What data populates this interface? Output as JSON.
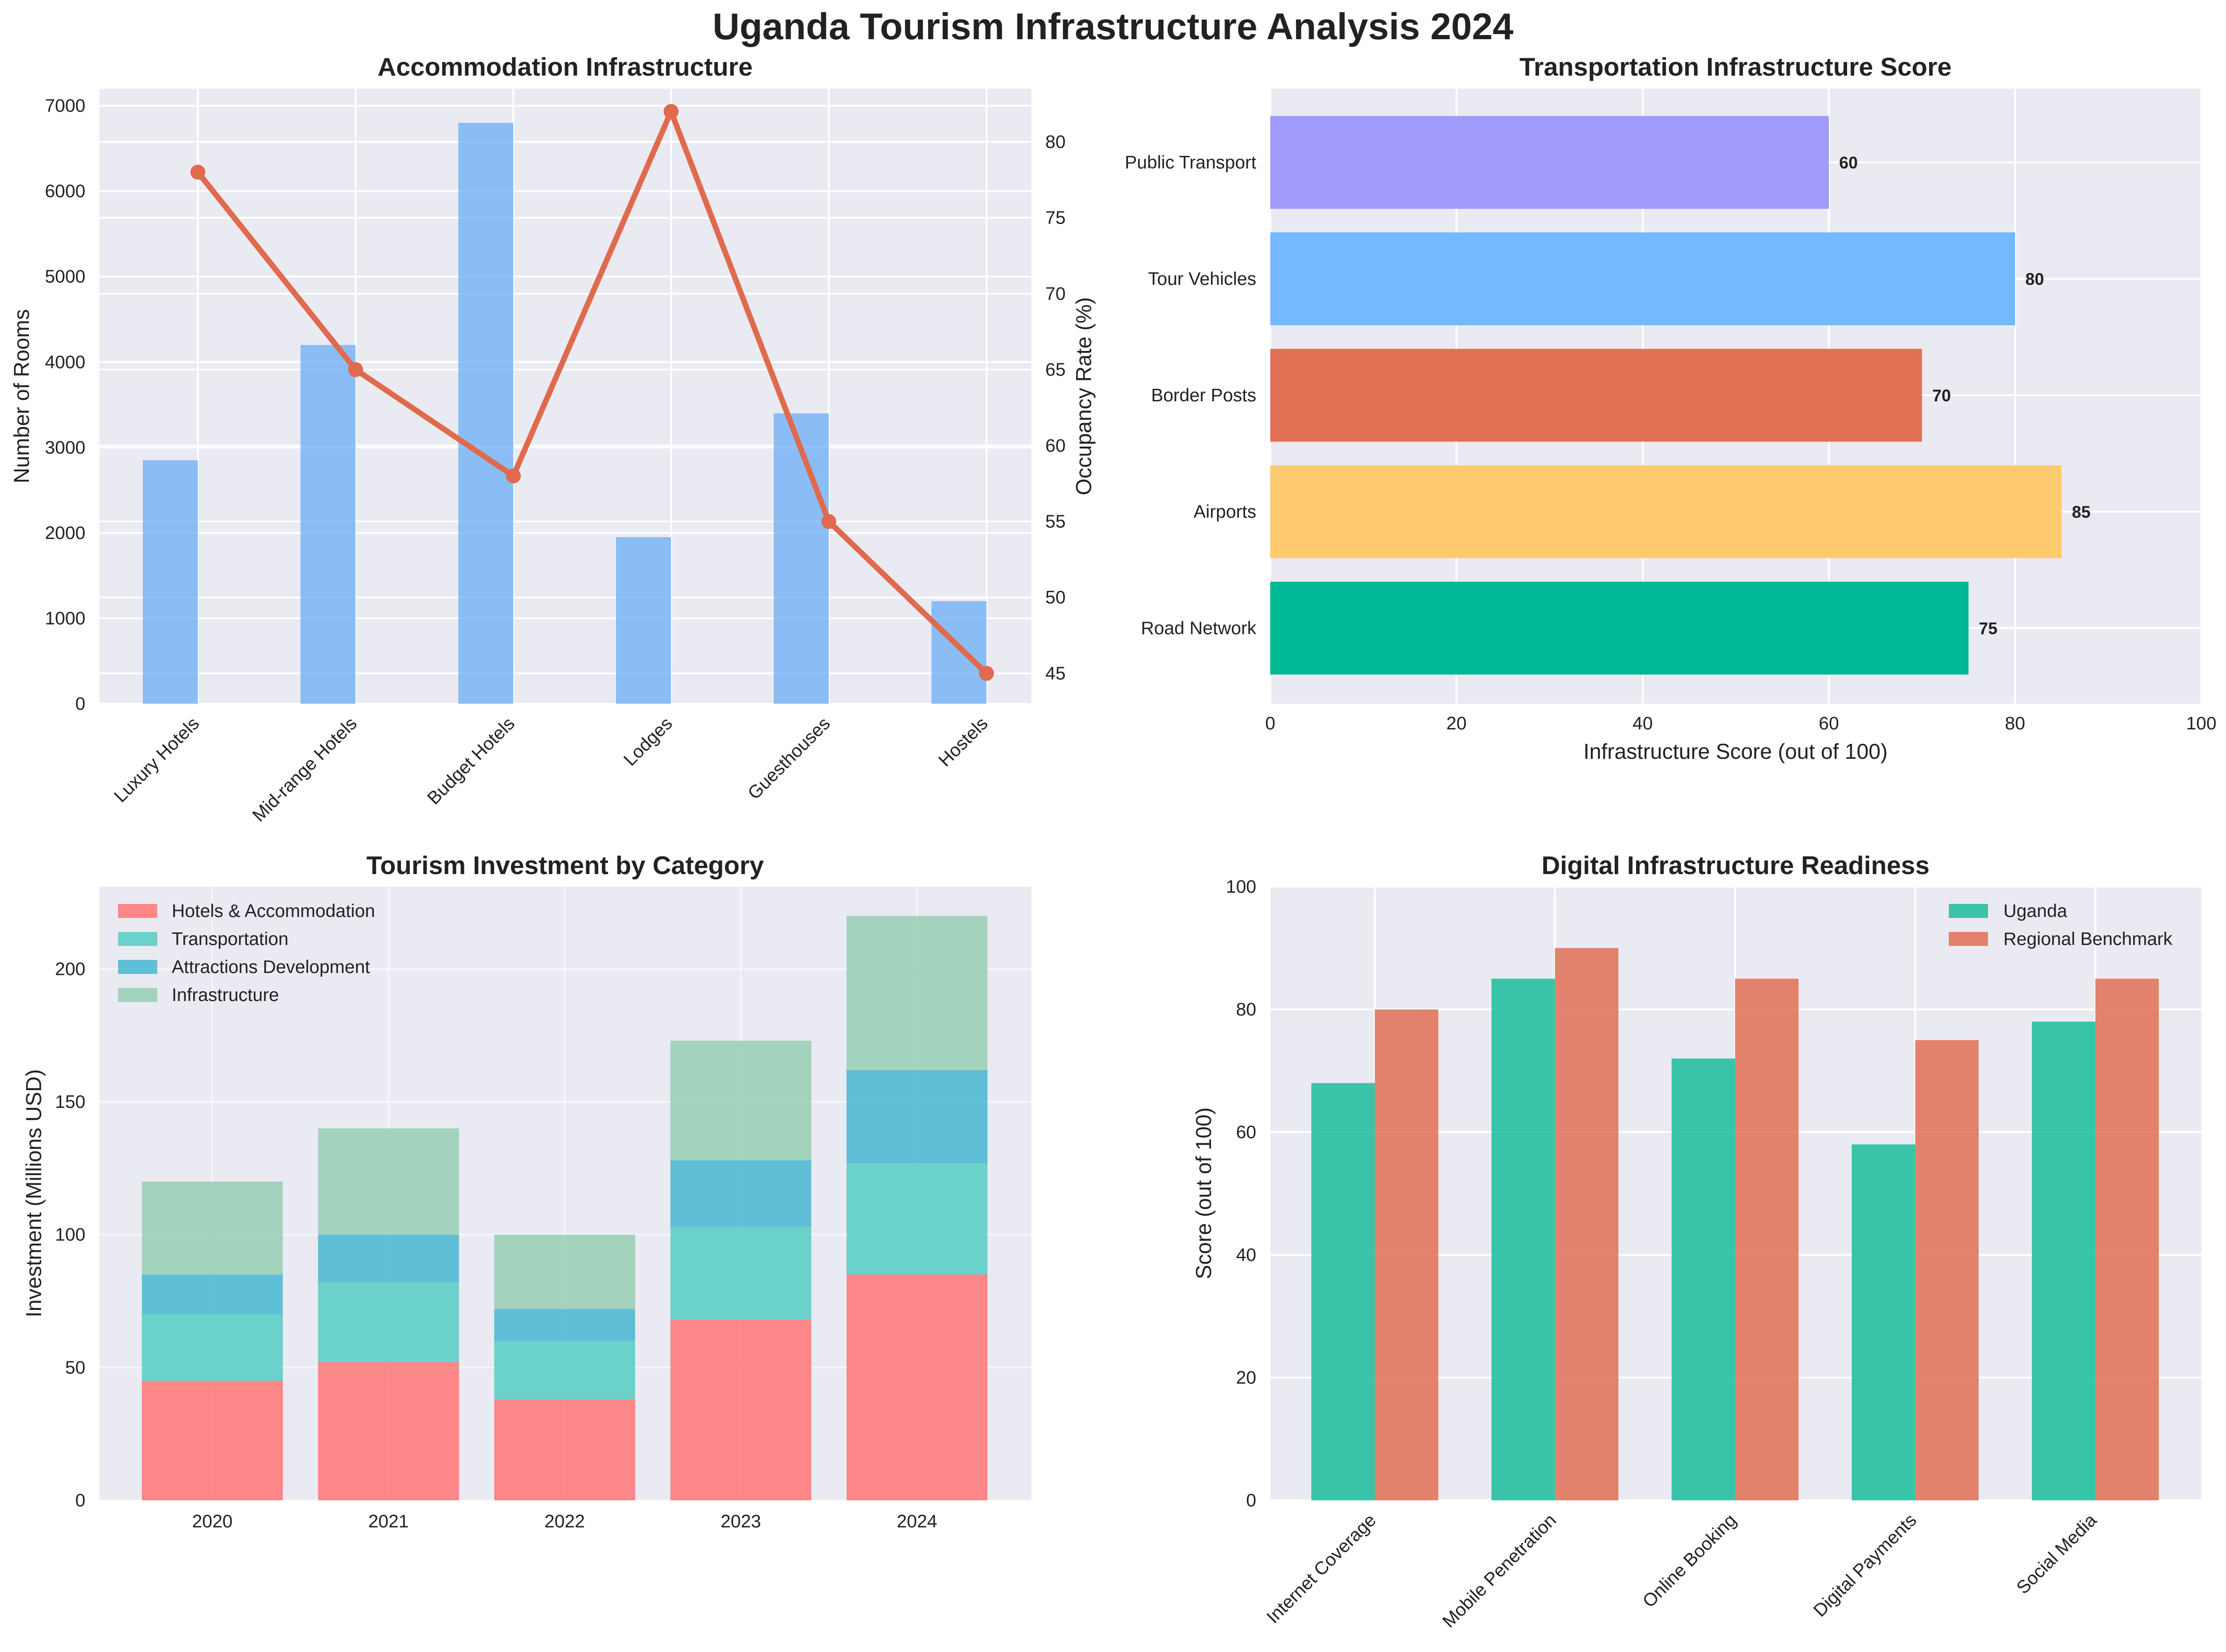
{
  "title": "Uganda Tourism Infrastructure Analysis 2024",
  "colors": {
    "rooms": "#6aaef7",
    "rooms_label": "#6ab4f0",
    "occupancy": "#e06a4e",
    "transport": [
      "#00b894",
      "#fdcb6e",
      "#e17055",
      "#74b9ff",
      "#a29bfe"
    ],
    "investment": [
      "#ff7675",
      "#55cdc4",
      "#45b7d1",
      "#96ceb4"
    ],
    "uganda": "#1abc9c",
    "regional": "#e17055",
    "axes_bg": "#eaeaf2",
    "grid": "#ffffff"
  },
  "chart_data": [
    {
      "id": "accommodation",
      "type": "bar",
      "title": "Accommodation Infrastructure",
      "categories": [
        "Luxury Hotels",
        "Mid-range Hotels",
        "Budget Hotels",
        "Lodges",
        "Guesthouses",
        "Hostels"
      ],
      "series": [
        {
          "name": "Number of Rooms",
          "type": "bar",
          "axis": "left",
          "values": [
            2850,
            4200,
            6800,
            1950,
            3400,
            1200
          ]
        },
        {
          "name": "Occupancy Rate (%)",
          "type": "line",
          "axis": "right",
          "values": [
            78,
            65,
            58,
            82,
            55,
            45
          ]
        }
      ],
      "ylabel": "Number of Rooms",
      "ylabel_right": "Occupancy Rate (%)",
      "ylim": [
        0,
        7200
      ],
      "ylim_right": [
        43,
        83.5
      ],
      "yticks": [
        "0",
        "1000",
        "2000",
        "3000",
        "4000",
        "5000",
        "6000",
        "7000"
      ],
      "yticks_right": [
        "45",
        "50",
        "55",
        "60",
        "65",
        "70",
        "75",
        "80"
      ],
      "grid": true
    },
    {
      "id": "transportation",
      "type": "bar",
      "orientation": "horizontal",
      "title": "Transportation Infrastructure Score",
      "categories": [
        "Road Network",
        "Airports",
        "Border Posts",
        "Tour Vehicles",
        "Public Transport"
      ],
      "values": [
        75,
        85,
        70,
        80,
        60
      ],
      "data_labels": [
        "75",
        "85",
        "70",
        "80",
        "60"
      ],
      "xlabel": "Infrastructure Score (out of 100)",
      "xlim": [
        0,
        100
      ],
      "xticks": [
        "0",
        "20",
        "40",
        "60",
        "80",
        "100"
      ],
      "grid": true
    },
    {
      "id": "investment",
      "type": "bar",
      "stacked": true,
      "title": "Tourism Investment by Category",
      "categories": [
        "2020",
        "2021",
        "2022",
        "2023",
        "2024"
      ],
      "series": [
        {
          "name": "Hotels & Accommodation",
          "values": [
            45,
            52,
            38,
            68,
            85
          ]
        },
        {
          "name": "Transportation",
          "values": [
            25,
            30,
            22,
            35,
            42
          ]
        },
        {
          "name": "Attractions Development",
          "values": [
            15,
            18,
            12,
            25,
            35
          ]
        },
        {
          "name": "Infrastructure",
          "values": [
            35,
            40,
            28,
            45,
            58
          ]
        }
      ],
      "ylabel": "Investment (Millions USD)",
      "ylim": [
        0,
        231
      ],
      "yticks": [
        "0",
        "50",
        "100",
        "150",
        "200"
      ],
      "legend": "top-left",
      "grid": true
    },
    {
      "id": "digital",
      "type": "bar",
      "title": "Digital Infrastructure Readiness",
      "categories": [
        "Internet Coverage",
        "Mobile Penetration",
        "Online Booking",
        "Digital Payments",
        "Social Media"
      ],
      "series": [
        {
          "name": "Uganda",
          "values": [
            68,
            85,
            72,
            58,
            78
          ]
        },
        {
          "name": "Regional Benchmark",
          "values": [
            80,
            90,
            85,
            75,
            85
          ]
        }
      ],
      "ylabel": "Score (out of 100)",
      "ylim": [
        0,
        100
      ],
      "yticks": [
        "0",
        "20",
        "40",
        "60",
        "80",
        "100"
      ],
      "legend": "top-right",
      "grid": true
    }
  ]
}
